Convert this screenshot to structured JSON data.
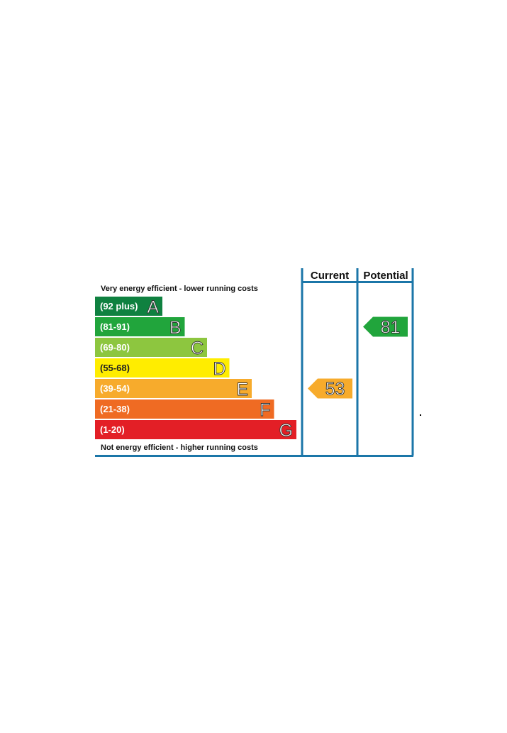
{
  "chart_data": {
    "type": "bar",
    "columns": {
      "current": "Current",
      "potential": "Potential"
    },
    "top_caption": "Very energy efficient - lower running costs",
    "bottom_caption": "Not energy efficient - higher running costs",
    "bands": [
      {
        "range": "(92 plus)",
        "letter": "A",
        "color": "#0f8140"
      },
      {
        "range": "(81-91)",
        "letter": "B",
        "color": "#21a53c"
      },
      {
        "range": "(69-80)",
        "letter": "C",
        "color": "#8dc63f"
      },
      {
        "range": "(55-68)",
        "letter": "D",
        "color": "#ffed00"
      },
      {
        "range": "(39-54)",
        "letter": "E",
        "color": "#f7ab2c"
      },
      {
        "range": "(21-38)",
        "letter": "F",
        "color": "#ef6b23"
      },
      {
        "range": "(1-20)",
        "letter": "G",
        "color": "#e31f26"
      }
    ],
    "current": {
      "value": 53,
      "band": "E",
      "color": "#f7ab2c"
    },
    "potential": {
      "value": 81,
      "band": "B",
      "color": "#21a53c"
    },
    "frame_color": "#1b76a8"
  }
}
